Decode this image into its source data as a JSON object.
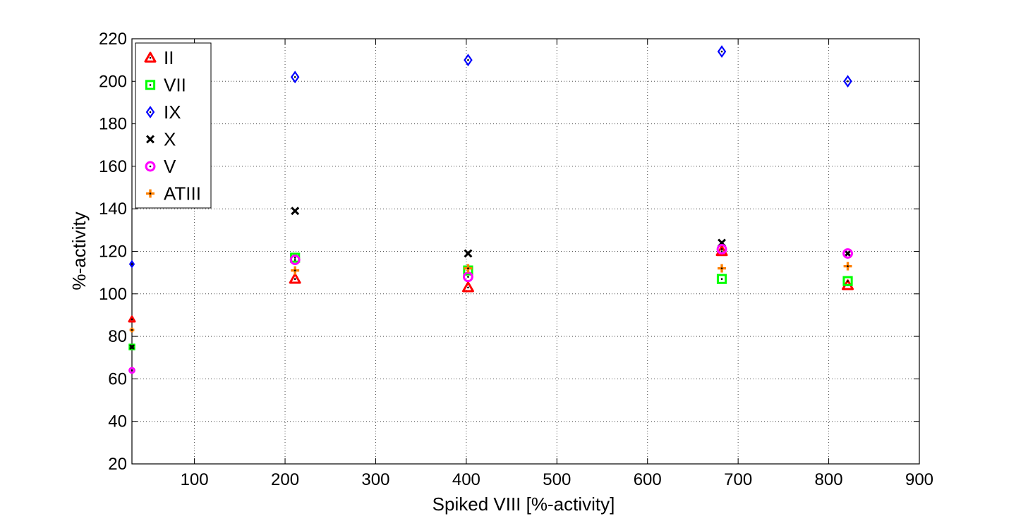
{
  "chart_data": {
    "type": "scatter",
    "xlabel": "Spiked VIII [%-activity]",
    "ylabel": "%-activity",
    "xlim": [
      31,
      900
    ],
    "ylim": [
      20,
      220
    ],
    "xticks": [
      100,
      200,
      300,
      400,
      500,
      600,
      700,
      800,
      900
    ],
    "yticks": [
      20,
      40,
      60,
      80,
      100,
      120,
      140,
      160,
      180,
      200,
      220
    ],
    "grid": true,
    "legend_position": "top-left",
    "series": [
      {
        "name": "II",
        "marker": "triangle",
        "color": "#ff0000",
        "x": [
          31,
          211,
          402,
          682,
          821
        ],
        "y": [
          88,
          107,
          103,
          120,
          104
        ]
      },
      {
        "name": "VII",
        "marker": "square",
        "color": "#00ff00",
        "x": [
          31,
          211,
          402,
          682,
          821
        ],
        "y": [
          75,
          117,
          111,
          107,
          106
        ]
      },
      {
        "name": "IX",
        "marker": "diamond",
        "color": "#0000ff",
        "x": [
          31,
          211,
          402,
          682,
          821
        ],
        "y": [
          114,
          202,
          210,
          214,
          200
        ]
      },
      {
        "name": "X",
        "marker": "x",
        "color": "#000000",
        "x": [
          31,
          211,
          402,
          682,
          821
        ],
        "y": [
          75,
          139,
          119,
          124,
          119
        ]
      },
      {
        "name": "V",
        "marker": "circle",
        "color": "#ff00ff",
        "x": [
          31,
          211,
          402,
          682,
          821
        ],
        "y": [
          64,
          116,
          108,
          121,
          119
        ]
      },
      {
        "name": "ATIII",
        "marker": "plus",
        "color": "#ff8000",
        "x": [
          31,
          211,
          402,
          682,
          821
        ],
        "y": [
          83,
          111,
          112,
          112,
          113
        ]
      }
    ]
  }
}
